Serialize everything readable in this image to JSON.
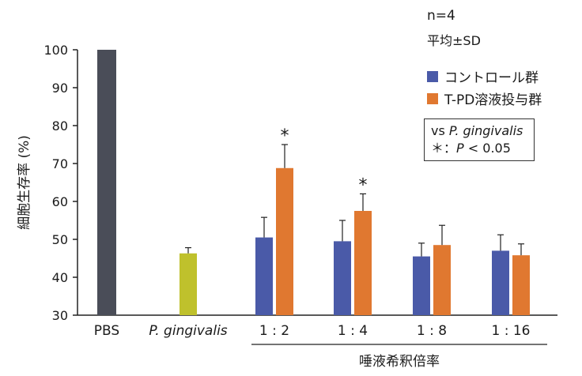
{
  "chart_data": {
    "type": "bar",
    "ylabel": "細胞生存率 (%)",
    "ylim": [
      30,
      100
    ],
    "yticks": [
      30,
      40,
      50,
      60,
      70,
      80,
      90,
      100
    ],
    "categories": [
      "PBS",
      "P. gingivalis",
      "1 : 2",
      "1 : 4",
      "1 : 8",
      "1 : 16"
    ],
    "x_group_label": "唾液希釈倍率",
    "single_bars": [
      {
        "category": "PBS",
        "value": 100,
        "error": 0,
        "color": "#4a4d58"
      },
      {
        "category": "P. gingivalis",
        "value": 46.3,
        "error": 1.5,
        "color": "#bfc12c"
      }
    ],
    "series": [
      {
        "name": "コントロール群",
        "color": "#4a5aa8",
        "values": [
          null,
          null,
          50.5,
          49.5,
          45.5,
          47.0
        ],
        "errors": [
          null,
          null,
          5.3,
          5.5,
          3.5,
          4.2
        ]
      },
      {
        "name": "T-PD溶液投与群",
        "color": "#e07830",
        "values": [
          null,
          null,
          68.8,
          57.5,
          48.5,
          45.8
        ],
        "errors": [
          null,
          null,
          6.2,
          4.5,
          5.2,
          3.0
        ]
      }
    ],
    "significance": [
      {
        "category": "1 : 2",
        "series": "T-PD溶液投与群",
        "mark": "*"
      },
      {
        "category": "1 : 4",
        "series": "T-PD溶液投与群",
        "mark": "*"
      }
    ]
  },
  "annotations": {
    "n": "n=4",
    "stat": "平均±SD",
    "vs_prefix": "vs ",
    "vs_target": "P. gingivalis",
    "sig_star": "＊",
    "sig_sep": "：",
    "sig_p": "P",
    "sig_threshold": " < 0.05"
  }
}
